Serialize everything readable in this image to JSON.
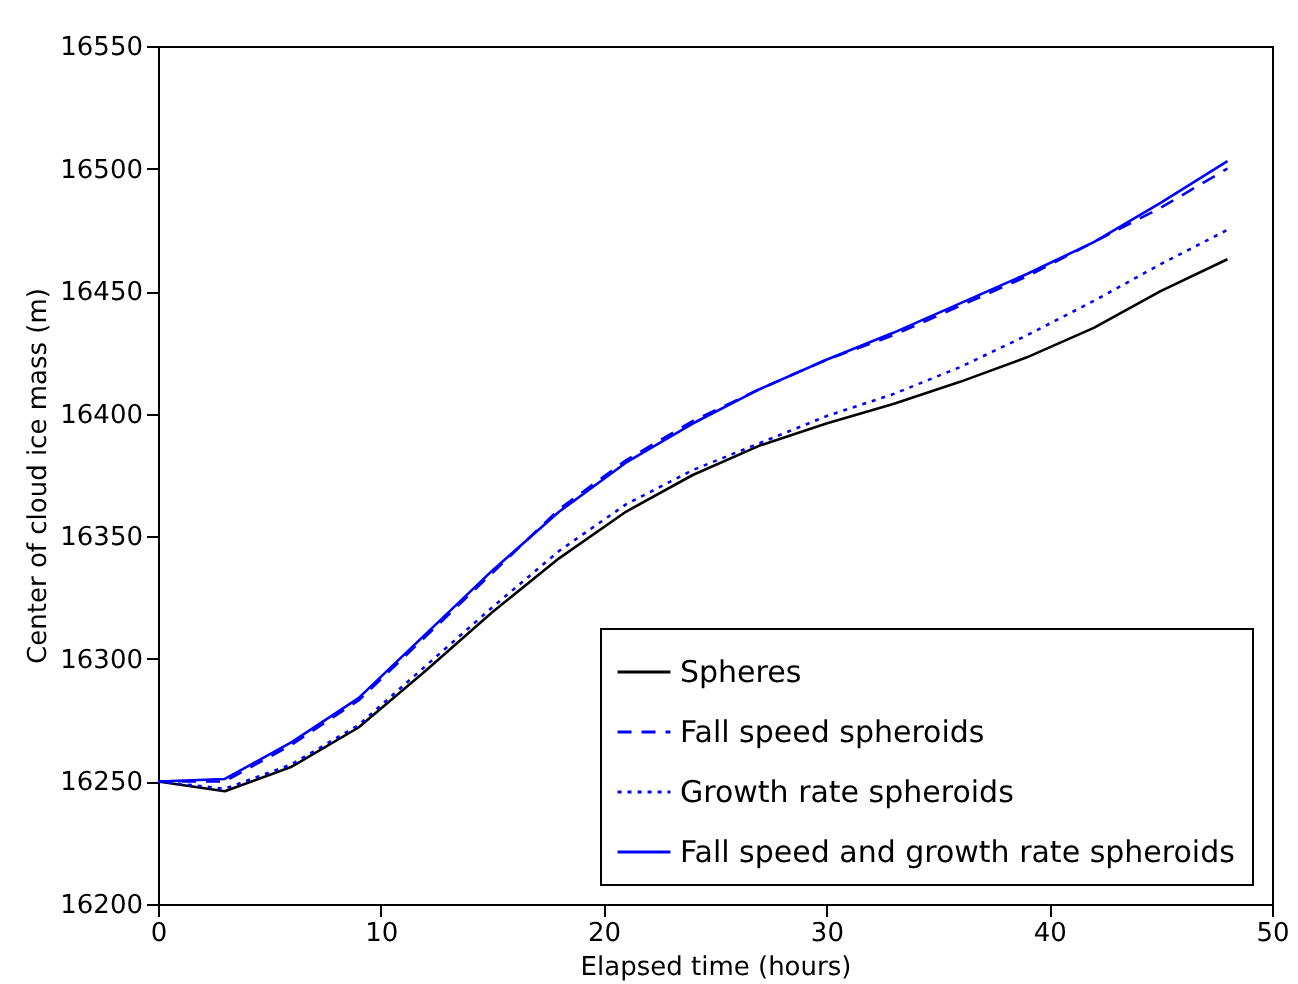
{
  "chart_data": {
    "type": "line",
    "xlabel": "Elapsed time (hours)",
    "ylabel": "Center of cloud ice mass (m)",
    "x": [
      0,
      3,
      6,
      9,
      12,
      15,
      18,
      21,
      24,
      27,
      30,
      33,
      36,
      39,
      42,
      45,
      48
    ],
    "series": [
      {
        "name": "Spheres",
        "color": "#000000",
        "line_style": "solid",
        "values": [
          16250,
          16246,
          16256,
          16272,
          16295,
          16319,
          16341,
          16360,
          16375,
          16387,
          16396,
          16404,
          16413,
          16423,
          16435,
          16450,
          16463
        ]
      },
      {
        "name": "Fall speed spheroids",
        "color": "#0000ff",
        "line_style": "dashed",
        "values": [
          16250,
          16250,
          16265,
          16283,
          16309,
          16335,
          16361,
          16381,
          16397,
          16410,
          16422,
          16432,
          16444,
          16456,
          16470,
          16484,
          16500
        ]
      },
      {
        "name": "Growth rate spheroids",
        "color": "#0000ff",
        "line_style": "dotted",
        "values": [
          16250,
          16247,
          16257,
          16273,
          16297,
          16321,
          16344,
          16363,
          16377,
          16388,
          16399,
          16408,
          16419,
          16432,
          16446,
          16461,
          16475
        ]
      },
      {
        "name": "Fall speed and growth rate spheroids",
        "color": "#0000ff",
        "line_style": "solid",
        "values": [
          16250,
          16251,
          16266,
          16284,
          16310,
          16336,
          16360,
          16380,
          16396,
          16410,
          16422,
          16433,
          16445,
          16457,
          16470,
          16486,
          16503
        ]
      }
    ],
    "xlim": [
      0,
      50
    ],
    "xticks": [
      0,
      10,
      20,
      30,
      40,
      50
    ],
    "ylim": [
      16200,
      16550
    ],
    "yticks": [
      16200,
      16250,
      16300,
      16350,
      16400,
      16450,
      16500,
      16550
    ],
    "grid": false,
    "legend": "bottom right",
    "marker": "none"
  }
}
